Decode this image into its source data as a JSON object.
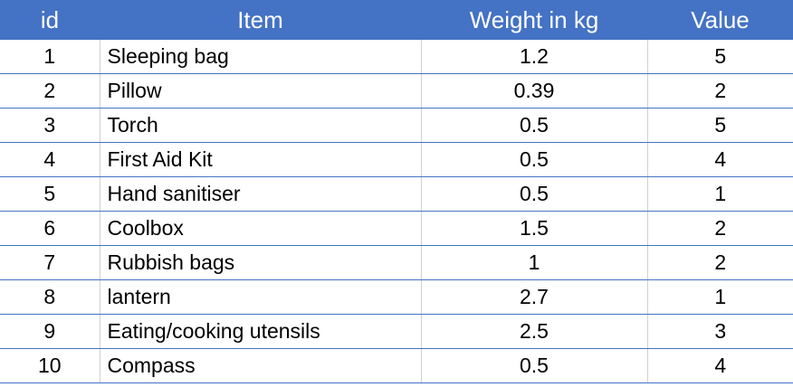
{
  "headers": {
    "id": "id",
    "item": "Item",
    "weight": "Weight in kg",
    "value": "Value"
  },
  "rows": [
    {
      "id": "1",
      "item": "Sleeping bag",
      "weight": "1.2",
      "value": "5"
    },
    {
      "id": "2",
      "item": "Pillow",
      "weight": "0.39",
      "value": "2"
    },
    {
      "id": "3",
      "item": "Torch",
      "weight": "0.5",
      "value": "5"
    },
    {
      "id": "4",
      "item": "First Aid Kit",
      "weight": "0.5",
      "value": "4"
    },
    {
      "id": "5",
      "item": "Hand sanitiser",
      "weight": "0.5",
      "value": "1"
    },
    {
      "id": "6",
      "item": "Coolbox",
      "weight": "1.5",
      "value": "2"
    },
    {
      "id": "7",
      "item": "Rubbish bags",
      "weight": "1",
      "value": "2"
    },
    {
      "id": "8",
      "item": "lantern",
      "weight": "2.7",
      "value": "1"
    },
    {
      "id": "9",
      "item": "Eating/cooking utensils",
      "weight": "2.5",
      "value": "3"
    },
    {
      "id": "10",
      "item": "Compass",
      "weight": "0.5",
      "value": "4"
    }
  ],
  "colors": {
    "header_bg": "#4472c4",
    "header_text": "#ffffff",
    "row_border": "#4472c4"
  }
}
